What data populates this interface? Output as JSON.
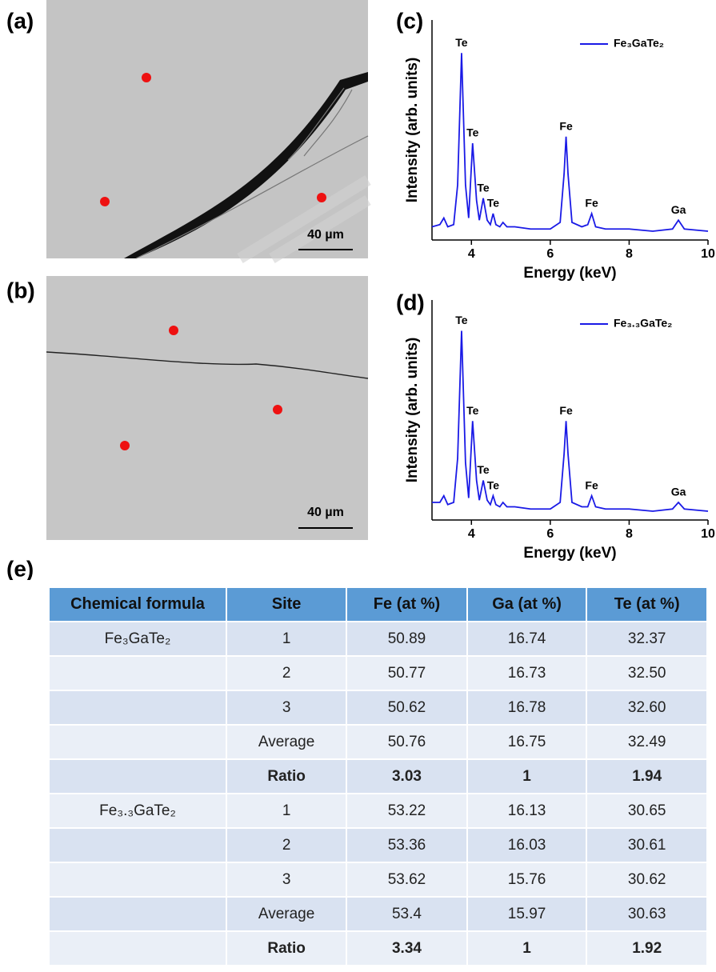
{
  "labels": [
    "(a)",
    "(b)",
    "(c)",
    "(d)",
    "(e)"
  ],
  "images": [
    {
      "scale_bar": "40 µm"
    },
    {
      "scale_bar": "40 µm"
    }
  ],
  "chart_data": [
    {
      "type": "line",
      "xlabel": "Energy (keV)",
      "ylabel": "Intensity (arb. units)",
      "xlim": [
        3,
        10
      ],
      "ylim": [
        0,
        100
      ],
      "xticks": [
        4,
        6,
        8,
        10
      ],
      "legend": "upper right",
      "x": [
        3.0,
        3.2,
        3.3,
        3.4,
        3.55,
        3.65,
        3.75,
        3.85,
        3.93,
        4.03,
        4.13,
        4.2,
        4.3,
        4.4,
        4.48,
        4.55,
        4.62,
        4.72,
        4.8,
        4.9,
        5.1,
        5.5,
        6.0,
        6.25,
        6.35,
        6.4,
        6.45,
        6.55,
        6.8,
        6.95,
        7.05,
        7.15,
        7.4,
        8.0,
        8.6,
        9.1,
        9.25,
        9.4,
        10.0
      ],
      "series": [
        {
          "name": "Fe₃GaTe₂",
          "color": "#1a1ae6",
          "values": [
            6,
            7,
            10,
            6,
            7,
            25,
            85,
            25,
            10,
            44,
            18,
            9,
            19,
            9,
            7,
            12,
            7,
            6,
            8,
            6,
            6,
            5,
            5,
            8,
            30,
            47,
            30,
            8,
            6,
            7,
            12,
            6,
            5,
            5,
            4,
            5,
            9,
            5,
            4
          ]
        }
      ],
      "annotations": [
        {
          "text": "Te",
          "x": 3.75,
          "y": 85
        },
        {
          "text": "Te",
          "x": 4.03,
          "y": 44
        },
        {
          "text": "Te",
          "x": 4.3,
          "y": 19
        },
        {
          "text": "Te",
          "x": 4.55,
          "y": 12
        },
        {
          "text": "Fe",
          "x": 6.4,
          "y": 47
        },
        {
          "text": "Fe",
          "x": 7.05,
          "y": 12
        },
        {
          "text": "Ga",
          "x": 9.25,
          "y": 9
        }
      ]
    },
    {
      "type": "line",
      "xlabel": "Energy (keV)",
      "ylabel": "Intensity (arb. units)",
      "xlim": [
        3,
        10
      ],
      "ylim": [
        0,
        100
      ],
      "xticks": [
        4,
        6,
        8,
        10
      ],
      "legend": "upper right",
      "x": [
        3.0,
        3.2,
        3.3,
        3.4,
        3.55,
        3.65,
        3.75,
        3.85,
        3.93,
        4.03,
        4.13,
        4.2,
        4.3,
        4.4,
        4.48,
        4.55,
        4.62,
        4.72,
        4.8,
        4.9,
        5.1,
        5.5,
        6.0,
        6.25,
        6.35,
        6.4,
        6.45,
        6.55,
        6.8,
        6.95,
        7.05,
        7.15,
        7.4,
        8.0,
        8.6,
        9.1,
        9.25,
        9.4,
        10.0
      ],
      "series": [
        {
          "name": "Fe₃.₃GaTe₂",
          "color": "#1a1ae6",
          "values": [
            8,
            8,
            11,
            7,
            8,
            28,
            86,
            26,
            10,
            45,
            18,
            9,
            18,
            9,
            7,
            11,
            7,
            6,
            8,
            6,
            6,
            5,
            5,
            8,
            30,
            45,
            30,
            8,
            6,
            6,
            11,
            6,
            5,
            5,
            4,
            5,
            8,
            5,
            4
          ]
        }
      ],
      "annotations": [
        {
          "text": "Te",
          "x": 3.75,
          "y": 86
        },
        {
          "text": "Te",
          "x": 4.03,
          "y": 45
        },
        {
          "text": "Te",
          "x": 4.3,
          "y": 18
        },
        {
          "text": "Te",
          "x": 4.55,
          "y": 11
        },
        {
          "text": "Fe",
          "x": 6.4,
          "y": 45
        },
        {
          "text": "Fe",
          "x": 7.05,
          "y": 11
        },
        {
          "text": "Ga",
          "x": 9.25,
          "y": 8
        }
      ]
    }
  ],
  "table": {
    "header": [
      "Chemical formula",
      "Site",
      "Fe (at %)",
      "Ga (at %)",
      "Te (at %)"
    ],
    "groups": [
      {
        "formula": "Fe₃GaTe₂",
        "rows": [
          [
            "1",
            "50.89",
            "16.74",
            "32.37"
          ],
          [
            "2",
            "50.77",
            "16.73",
            "32.50"
          ],
          [
            "3",
            "50.62",
            "16.78",
            "32.60"
          ],
          [
            "Average",
            "50.76",
            "16.75",
            "32.49"
          ],
          [
            "Ratio",
            "3.03",
            "1",
            "1.94"
          ]
        ]
      },
      {
        "formula": "Fe₃.₃GaTe₂",
        "rows": [
          [
            "1",
            "53.22",
            "16.13",
            "30.65"
          ],
          [
            "2",
            "53.36",
            "16.03",
            "30.61"
          ],
          [
            "3",
            "53.62",
            "15.76",
            "30.62"
          ],
          [
            "Average",
            "53.4",
            "15.97",
            "30.63"
          ],
          [
            "Ratio",
            "3.34",
            "1",
            "1.92"
          ]
        ]
      }
    ]
  }
}
